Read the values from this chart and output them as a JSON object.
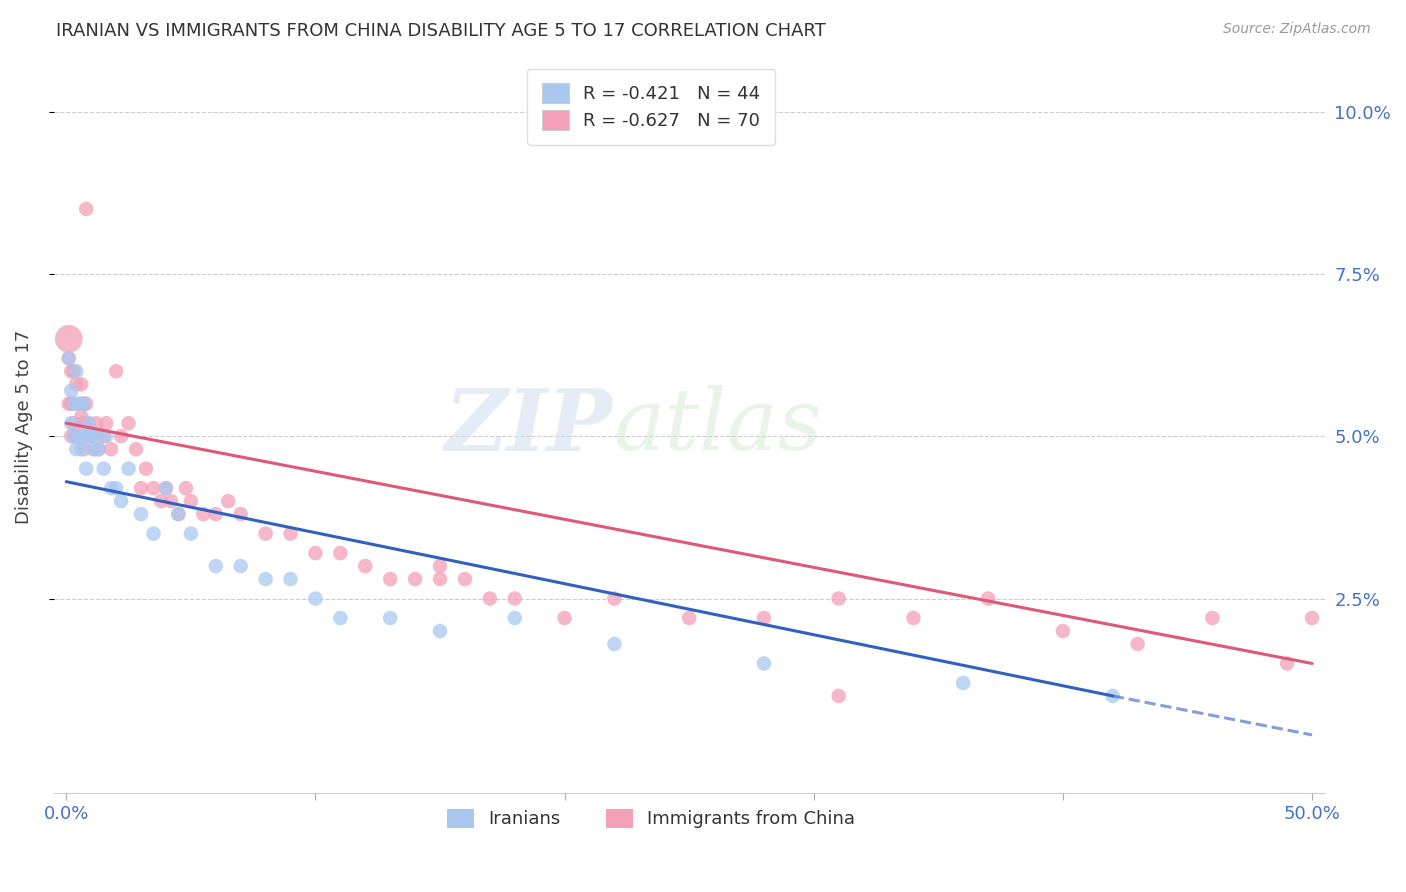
{
  "title": "IRANIAN VS IMMIGRANTS FROM CHINA DISABILITY AGE 5 TO 17 CORRELATION CHART",
  "source": "Source: ZipAtlas.com",
  "ylabel": "Disability Age 5 to 17",
  "legend_label1": "Iranians",
  "legend_label2": "Immigrants from China",
  "R1": "-0.421",
  "N1": "44",
  "R2": "-0.627",
  "N2": "70",
  "color1": "#a8c8f0",
  "color2": "#f4a0b8",
  "line_color1": "#3060c0",
  "line_color2": "#e05878",
  "xlim": [
    -0.005,
    0.505
  ],
  "ylim": [
    -0.005,
    0.108
  ],
  "y_ticks": [
    0.025,
    0.05,
    0.075,
    0.1
  ],
  "y_tick_labels": [
    "2.5%",
    "5.0%",
    "7.5%",
    "10.0%"
  ],
  "x_ticks": [
    0.0,
    0.1,
    0.2,
    0.3,
    0.4,
    0.5
  ],
  "x_tick_labels": [
    "0.0%",
    "",
    "",
    "",
    "",
    "50.0%"
  ],
  "watermark_text": "ZIPatlas",
  "iranians_x": [
    0.001,
    0.002,
    0.002,
    0.003,
    0.003,
    0.004,
    0.004,
    0.005,
    0.005,
    0.006,
    0.006,
    0.007,
    0.007,
    0.008,
    0.008,
    0.009,
    0.01,
    0.011,
    0.012,
    0.013,
    0.015,
    0.016,
    0.018,
    0.02,
    0.022,
    0.025,
    0.03,
    0.035,
    0.04,
    0.045,
    0.05,
    0.06,
    0.07,
    0.08,
    0.09,
    0.1,
    0.11,
    0.13,
    0.15,
    0.18,
    0.22,
    0.28,
    0.36,
    0.42
  ],
  "iranians_y": [
    0.062,
    0.057,
    0.052,
    0.05,
    0.055,
    0.06,
    0.048,
    0.05,
    0.055,
    0.055,
    0.048,
    0.05,
    0.055,
    0.05,
    0.045,
    0.052,
    0.05,
    0.048,
    0.05,
    0.048,
    0.045,
    0.05,
    0.042,
    0.042,
    0.04,
    0.045,
    0.038,
    0.035,
    0.042,
    0.038,
    0.035,
    0.03,
    0.03,
    0.028,
    0.028,
    0.025,
    0.022,
    0.022,
    0.02,
    0.022,
    0.018,
    0.015,
    0.012,
    0.01
  ],
  "iranians_size": [
    80,
    80,
    80,
    80,
    80,
    80,
    80,
    80,
    80,
    80,
    80,
    80,
    80,
    80,
    80,
    80,
    80,
    80,
    80,
    80,
    80,
    80,
    80,
    80,
    80,
    80,
    80,
    80,
    80,
    80,
    80,
    80,
    80,
    80,
    80,
    80,
    80,
    80,
    80,
    80,
    80,
    80,
    80,
    80
  ],
  "china_x": [
    0.001,
    0.001,
    0.002,
    0.002,
    0.002,
    0.003,
    0.003,
    0.003,
    0.004,
    0.004,
    0.005,
    0.005,
    0.006,
    0.006,
    0.007,
    0.007,
    0.007,
    0.008,
    0.008,
    0.009,
    0.01,
    0.011,
    0.012,
    0.013,
    0.015,
    0.016,
    0.018,
    0.02,
    0.022,
    0.025,
    0.028,
    0.03,
    0.032,
    0.035,
    0.038,
    0.04,
    0.042,
    0.045,
    0.048,
    0.05,
    0.055,
    0.06,
    0.065,
    0.07,
    0.08,
    0.09,
    0.1,
    0.11,
    0.12,
    0.13,
    0.14,
    0.15,
    0.16,
    0.17,
    0.18,
    0.2,
    0.22,
    0.25,
    0.28,
    0.31,
    0.34,
    0.37,
    0.4,
    0.43,
    0.46,
    0.49,
    0.5,
    0.008,
    0.15,
    0.31
  ],
  "china_y": [
    0.062,
    0.055,
    0.06,
    0.055,
    0.05,
    0.06,
    0.055,
    0.052,
    0.058,
    0.05,
    0.055,
    0.05,
    0.058,
    0.053,
    0.055,
    0.052,
    0.048,
    0.055,
    0.05,
    0.052,
    0.05,
    0.048,
    0.052,
    0.048,
    0.05,
    0.052,
    0.048,
    0.06,
    0.05,
    0.052,
    0.048,
    0.042,
    0.045,
    0.042,
    0.04,
    0.042,
    0.04,
    0.038,
    0.042,
    0.04,
    0.038,
    0.038,
    0.04,
    0.038,
    0.035,
    0.035,
    0.032,
    0.032,
    0.03,
    0.028,
    0.028,
    0.03,
    0.028,
    0.025,
    0.025,
    0.022,
    0.025,
    0.022,
    0.022,
    0.025,
    0.022,
    0.025,
    0.02,
    0.018,
    0.022,
    0.015,
    0.022,
    0.085,
    0.028,
    0.01
  ],
  "china_size": [
    80,
    80,
    80,
    80,
    80,
    80,
    80,
    80,
    80,
    80,
    80,
    80,
    80,
    80,
    80,
    80,
    80,
    80,
    80,
    80,
    80,
    80,
    80,
    80,
    80,
    80,
    80,
    80,
    80,
    80,
    80,
    80,
    80,
    80,
    80,
    80,
    80,
    80,
    80,
    80,
    80,
    80,
    80,
    80,
    80,
    80,
    80,
    80,
    80,
    80,
    80,
    80,
    80,
    80,
    80,
    80,
    80,
    80,
    80,
    80,
    80,
    80,
    80,
    80,
    80,
    80,
    80,
    80,
    80,
    80
  ],
  "china_big_x": [
    0.001
  ],
  "china_big_y": [
    0.065
  ],
  "china_big_size": [
    400
  ],
  "line1_x0": 0.0,
  "line1_y0": 0.043,
  "line1_x1": 0.42,
  "line1_y1": 0.01,
  "line1_dash_x0": 0.42,
  "line1_dash_y0": 0.01,
  "line1_dash_x1": 0.5,
  "line1_dash_y1": 0.004,
  "line2_x0": 0.0,
  "line2_y0": 0.052,
  "line2_x1": 0.5,
  "line2_y1": 0.015
}
